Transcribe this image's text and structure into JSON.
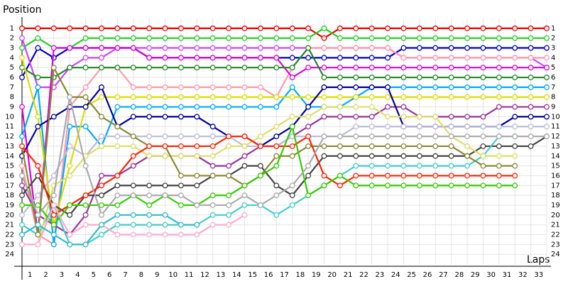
{
  "chart_data": {
    "type": "line",
    "title": "Position",
    "x_label": "Laps",
    "x": [
      0,
      1,
      2,
      3,
      4,
      5,
      6,
      7,
      8,
      9,
      10,
      11,
      12,
      13,
      14,
      15,
      16,
      17,
      18,
      19,
      20,
      21,
      22,
      23,
      24,
      25,
      26,
      27,
      28,
      29,
      30,
      31,
      32,
      33
    ],
    "xlim": [
      0,
      33
    ],
    "xticks": [
      1,
      2,
      3,
      4,
      5,
      6,
      7,
      8,
      9,
      10,
      11,
      12,
      13,
      14,
      15,
      16,
      17,
      18,
      19,
      20,
      21,
      22,
      23,
      24,
      25,
      26,
      27,
      28,
      29,
      30,
      31,
      32,
      33
    ],
    "ylim": [
      25,
      0
    ],
    "yticks": [
      1,
      2,
      3,
      4,
      5,
      6,
      7,
      8,
      9,
      10,
      11,
      12,
      13,
      14,
      15,
      16,
      17,
      18,
      19,
      20,
      21,
      22,
      23,
      24
    ],
    "grid": true,
    "series": [
      {
        "color": "#ee0000",
        "values": [
          1,
          1,
          1,
          1,
          1,
          1,
          1,
          1,
          1,
          1,
          1,
          1,
          1,
          1,
          1,
          1,
          1,
          1,
          1,
          2,
          1,
          1,
          1,
          1,
          1,
          1,
          1,
          1,
          1,
          1,
          1,
          1,
          1,
          1
        ]
      },
      {
        "color": "#22cc22",
        "values": [
          3,
          2,
          3,
          3,
          2,
          2,
          2,
          2,
          2,
          2,
          2,
          2,
          2,
          2,
          2,
          2,
          2,
          2,
          2,
          1,
          2,
          2,
          2,
          2,
          2,
          2,
          2,
          2,
          2,
          2,
          2,
          2,
          2,
          2
        ]
      },
      {
        "color": "#0000cc",
        "values": [
          6,
          3,
          4,
          3,
          3,
          3,
          3,
          3,
          4,
          4,
          4,
          4,
          4,
          4,
          4,
          4,
          4,
          4,
          4,
          4,
          4,
          4,
          4,
          4,
          3,
          3,
          3,
          3,
          3,
          3,
          3,
          3,
          3,
          3
        ]
      },
      {
        "color": "#cc44ff",
        "values": [
          2,
          7,
          7,
          5,
          4,
          4,
          3,
          3,
          3,
          3,
          3,
          3,
          3,
          3,
          3,
          3,
          3,
          3,
          3,
          3,
          3,
          3,
          3,
          3,
          4,
          4,
          4,
          4,
          4,
          4,
          4,
          4,
          4,
          5
        ]
      },
      {
        "color": "#ff99aa",
        "values": [
          15,
          22,
          23,
          9,
          7,
          5,
          5,
          7,
          7,
          7,
          7,
          7,
          7,
          7,
          7,
          7,
          8,
          5,
          3,
          3,
          3,
          3,
          3,
          3,
          4,
          4,
          4,
          4,
          4,
          4,
          4,
          4,
          4,
          4
        ]
      },
      {
        "color": "#dd00dd",
        "values": [
          9,
          22,
          3,
          3,
          3,
          3,
          3,
          3,
          4,
          4,
          4,
          4,
          4,
          4,
          4,
          4,
          4,
          6,
          5,
          5,
          5,
          5,
          5,
          5,
          5,
          5,
          5,
          5,
          5,
          5,
          5,
          5,
          5,
          5
        ]
      },
      {
        "color": "#228822",
        "values": [
          5,
          6,
          6,
          5,
          5,
          5,
          5,
          5,
          5,
          5,
          5,
          5,
          5,
          5,
          5,
          5,
          5,
          5,
          3,
          6,
          6,
          6,
          6,
          6,
          6,
          6,
          6,
          6,
          6,
          6,
          6,
          6,
          6,
          6
        ]
      },
      {
        "color": "#00aaff",
        "values": [
          12,
          7,
          23,
          11,
          11,
          13,
          9,
          9,
          9,
          9,
          9,
          9,
          9,
          9,
          9,
          9,
          9,
          7,
          9,
          9,
          9,
          8,
          7,
          7,
          7,
          7,
          7,
          7,
          7,
          7,
          7,
          7,
          7,
          7
        ]
      },
      {
        "color": "#dddd00",
        "values": [
          4,
          10,
          21,
          15,
          9,
          8,
          8,
          8,
          8,
          8,
          8,
          8,
          8,
          8,
          8,
          8,
          8,
          8,
          8,
          8,
          8,
          8,
          8,
          8,
          8,
          8,
          8,
          8,
          8,
          8,
          8,
          8,
          8,
          8
        ]
      },
      {
        "color": "#993399",
        "values": [
          17,
          20,
          21,
          22,
          20,
          16,
          16,
          15,
          14,
          14,
          14,
          14,
          15,
          15,
          14,
          13,
          13,
          12,
          11,
          10,
          10,
          10,
          10,
          9,
          9,
          10,
          10,
          10,
          10,
          10,
          9,
          9,
          9,
          9
        ]
      },
      {
        "color": "#000099",
        "values": [
          14,
          11,
          10,
          9,
          9,
          7,
          11,
          10,
          10,
          10,
          10,
          10,
          11,
          12,
          12,
          13,
          12,
          11,
          9,
          7,
          7,
          7,
          7,
          7,
          11,
          11,
          11,
          11,
          11,
          11,
          11,
          10,
          10,
          10
        ]
      },
      {
        "color": "#bbbbdd",
        "values": [
          20,
          18,
          16,
          13,
          14,
          12,
          12,
          12,
          12,
          12,
          12,
          12,
          12,
          12,
          13,
          13,
          13,
          12,
          12,
          12,
          12,
          11,
          11,
          11,
          11,
          11,
          11,
          11,
          11,
          11,
          11,
          11,
          11,
          11
        ]
      },
      {
        "color": "#444444",
        "values": [
          18,
          16,
          19,
          20,
          18,
          18,
          17,
          17,
          17,
          17,
          17,
          17,
          16,
          16,
          15,
          15,
          17,
          18,
          16,
          14,
          14,
          14,
          14,
          14,
          14,
          14,
          14,
          14,
          14,
          13,
          13,
          13,
          13,
          12
        ]
      },
      {
        "color": "#44cccc",
        "values": [
          21,
          22,
          19,
          23,
          23,
          22,
          21,
          21,
          21,
          21,
          21,
          21,
          20,
          20,
          19,
          19,
          20,
          19,
          18,
          17,
          16,
          15,
          15,
          15,
          15,
          15,
          15,
          15,
          15,
          14,
          12,
          12,
          null,
          null
        ]
      },
      {
        "color": "#dddd66",
        "values": [
          23,
          23,
          17,
          16,
          14,
          13,
          13,
          13,
          14,
          14,
          14,
          14,
          14,
          13,
          13,
          12,
          11,
          10,
          10,
          9,
          9,
          9,
          9,
          10,
          10,
          10,
          10,
          12,
          13,
          14,
          14,
          14,
          null,
          null
        ]
      },
      {
        "color": "#888833",
        "values": [
          13,
          22,
          5,
          8,
          8,
          10,
          11,
          12,
          13,
          13,
          16,
          16,
          16,
          16,
          17,
          16,
          14,
          14,
          13,
          13,
          13,
          13,
          13,
          13,
          13,
          13,
          13,
          13,
          14,
          15,
          15,
          15,
          null,
          null
        ]
      },
      {
        "color": "#ff2200",
        "values": [
          13,
          15,
          20,
          19,
          18,
          17,
          16,
          14,
          13,
          13,
          13,
          13,
          13,
          12,
          12,
          13,
          13,
          13,
          12,
          16,
          17,
          16,
          16,
          16,
          16,
          16,
          16,
          16,
          16,
          16,
          16,
          16,
          null,
          null
        ]
      },
      {
        "color": "#33cc00",
        "values": [
          19,
          19,
          21,
          19,
          19,
          19,
          19,
          18,
          19,
          18,
          19,
          19,
          18,
          18,
          17,
          16,
          15,
          11,
          18,
          17,
          16,
          17,
          17,
          17,
          17,
          17,
          17,
          17,
          17,
          17,
          17,
          17,
          null,
          null
        ]
      },
      {
        "color": "#aaaaaa",
        "values": [
          16,
          20,
          18,
          8,
          15,
          20,
          18,
          18,
          18,
          18,
          18,
          19,
          19,
          19,
          18,
          19,
          18,
          17,
          15,
          12,
          12,
          12,
          12,
          12,
          12,
          12,
          12,
          12,
          12,
          12,
          12,
          12,
          12,
          12
        ]
      },
      {
        "color": "#ffaacc",
        "values": [
          23,
          23,
          19,
          22,
          21,
          21,
          22,
          22,
          22,
          22,
          22,
          22,
          21,
          21,
          20,
          null,
          null,
          null,
          null,
          null,
          null,
          null,
          null,
          null,
          null,
          null,
          null,
          null,
          null,
          null,
          null,
          null,
          null,
          null
        ]
      },
      {
        "color": "#33bbcc",
        "values": [
          22,
          21,
          22,
          23,
          23,
          21,
          20,
          20,
          20,
          20,
          21,
          21,
          null,
          null,
          null,
          null,
          null,
          null,
          null,
          null,
          null,
          null,
          null,
          null,
          null,
          null,
          null,
          null,
          null,
          null,
          null,
          null,
          null,
          null
        ]
      }
    ]
  }
}
